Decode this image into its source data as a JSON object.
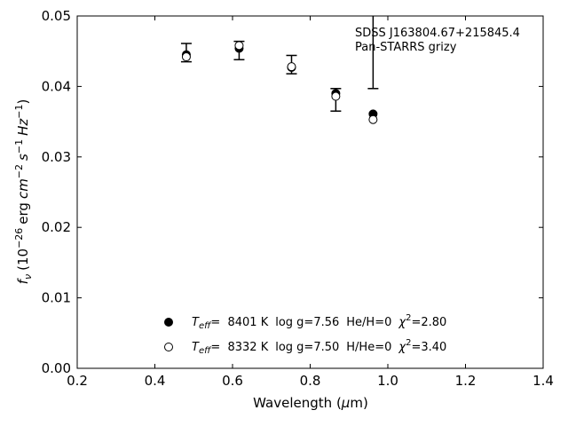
{
  "chart_data": {
    "type": "scatter",
    "title": "",
    "xlabel": "Wavelength",
    "xlabel_unit_open": "(",
    "xlabel_unit_mu": "μ",
    "xlabel_unit_rest": "m)",
    "ylabel_f": "f",
    "ylabel_nu": "ν",
    "ylabel_open": "(10",
    "ylabel_exp26": "−26",
    "ylabel_erg": "erg",
    "ylabel_cm": "cm",
    "ylabel_exp2": "−2",
    "ylabel_s": "s",
    "ylabel_exp1": "−1",
    "ylabel_hz": "Hz",
    "ylabel_exp1b": "−1",
    "ylabel_close": ")",
    "xlim": [
      0.2,
      1.4
    ],
    "ylim": [
      0.0,
      0.05
    ],
    "xticks": [
      0.2,
      0.4,
      0.6,
      0.8,
      1.0,
      1.2,
      1.4
    ],
    "xtick_labels": [
      "0.2",
      "0.4",
      "0.6",
      "0.8",
      "1.0",
      "1.2",
      "1.4"
    ],
    "yticks": [
      0.0,
      0.01,
      0.02,
      0.03,
      0.04,
      0.05
    ],
    "ytick_labels": [
      "0.00",
      "0.01",
      "0.02",
      "0.03",
      "0.04",
      "0.05"
    ],
    "grid": false,
    "annotation_line1": "SDSS J163804.67+215845.4",
    "annotation_line2": "Pan-STARRS grizy",
    "observed": {
      "x": [
        0.481,
        0.617,
        0.752,
        0.866,
        0.962
      ],
      "y": [
        0.0447,
        0.0451,
        0.0431,
        0.0381,
        0.0451
      ],
      "err_low": [
        0.0012,
        0.0013,
        0.0013,
        0.0016,
        0.0054
      ],
      "err_high": [
        0.0014,
        0.0013,
        0.0013,
        0.0016,
        0.0054
      ]
    },
    "series": [
      {
        "marker": "filled",
        "x": [
          0.481,
          0.617,
          0.752,
          0.866,
          0.962
        ],
        "y": [
          0.0445,
          0.0454,
          0.0427,
          0.039,
          0.0361
        ]
      },
      {
        "marker": "open",
        "x": [
          0.481,
          0.617,
          0.752,
          0.866,
          0.962
        ],
        "y": [
          0.0442,
          0.0458,
          0.0428,
          0.0386,
          0.0353
        ]
      }
    ],
    "legend_placement": "bottom-center",
    "legend": [
      {
        "marker": "filled",
        "teff_T": "T",
        "teff_sub": "eff",
        "teff_value": "=  8401 K",
        "logg": "log g=7.56",
        "comp": "He/H=0",
        "chi_sym": "χ",
        "chi_sup": "2",
        "chi_value": "=2.80"
      },
      {
        "marker": "open",
        "teff_T": "T",
        "teff_sub": "eff",
        "teff_value": "=  8332 K",
        "logg": "log g=7.50",
        "comp": "H/He=0",
        "chi_sym": "χ",
        "chi_sup": "2",
        "chi_value": "=3.40"
      }
    ]
  }
}
